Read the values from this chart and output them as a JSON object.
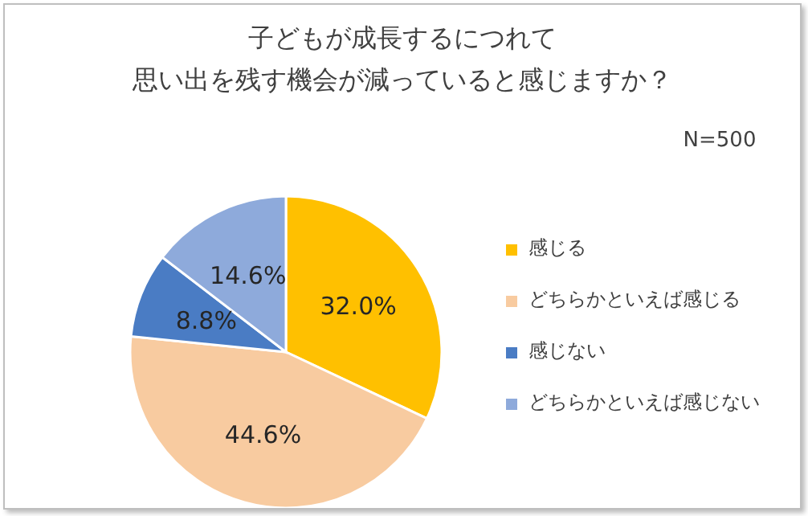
{
  "chart_data": {
    "type": "pie",
    "title": "子どもが成長するにつれて",
    "subtitle": "思い出を残す機会が減っていると感じますか？",
    "categories": [
      "感じる",
      "どちらかといえば感じる",
      "感じない",
      "どちらかといえば感じない"
    ],
    "values": [
      32.0,
      44.6,
      8.8,
      14.6
    ],
    "colors": [
      "#ffc000",
      "#f8cba0",
      "#4a7cc4",
      "#8eaadb"
    ],
    "value_labels": [
      "32.0%",
      "44.6%",
      "8.8%",
      "14.6%"
    ],
    "annotations": [
      "N=500"
    ],
    "legend": "right"
  }
}
